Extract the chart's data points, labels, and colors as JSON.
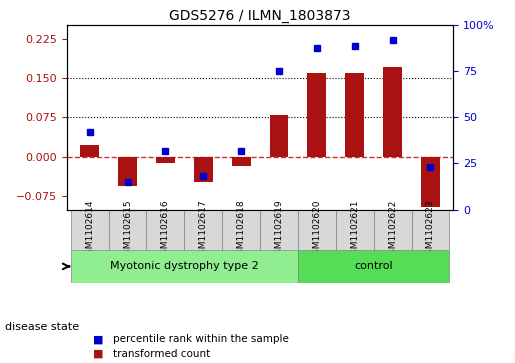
{
  "title": "GDS5276 / ILMN_1803873",
  "samples": [
    "GSM1102614",
    "GSM1102615",
    "GSM1102616",
    "GSM1102617",
    "GSM1102618",
    "GSM1102619",
    "GSM1102620",
    "GSM1102621",
    "GSM1102622",
    "GSM1102623"
  ],
  "bar_values": [
    0.022,
    -0.055,
    -0.012,
    -0.048,
    -0.018,
    0.08,
    0.16,
    0.16,
    0.17,
    -0.095
  ],
  "dot_values": [
    42,
    15,
    32,
    18,
    32,
    75,
    88,
    89,
    92,
    23
  ],
  "groups": [
    {
      "label": "Myotonic dystrophy type 2",
      "start": 0,
      "end": 5,
      "color": "#90ee90"
    },
    {
      "label": "control",
      "start": 6,
      "end": 9,
      "color": "#55dd55"
    }
  ],
  "bar_color": "#aa1111",
  "dot_color": "#0000cc",
  "ylim_left": [
    -0.1,
    0.25
  ],
  "ylim_right": [
    0,
    100
  ],
  "yticks_left": [
    -0.075,
    0,
    0.075,
    0.15,
    0.225
  ],
  "yticks_right": [
    0,
    25,
    50,
    75,
    100
  ],
  "hlines": [
    0.075,
    0.15
  ],
  "zero_line_color": "#cc3333",
  "grid_linestyle": "dotted",
  "bg_color": "#f0f0f0",
  "disease_state_label": "disease state",
  "legend": [
    {
      "label": "transformed count",
      "color": "#aa1111"
    },
    {
      "label": "percentile rank within the sample",
      "color": "#0000cc"
    }
  ]
}
